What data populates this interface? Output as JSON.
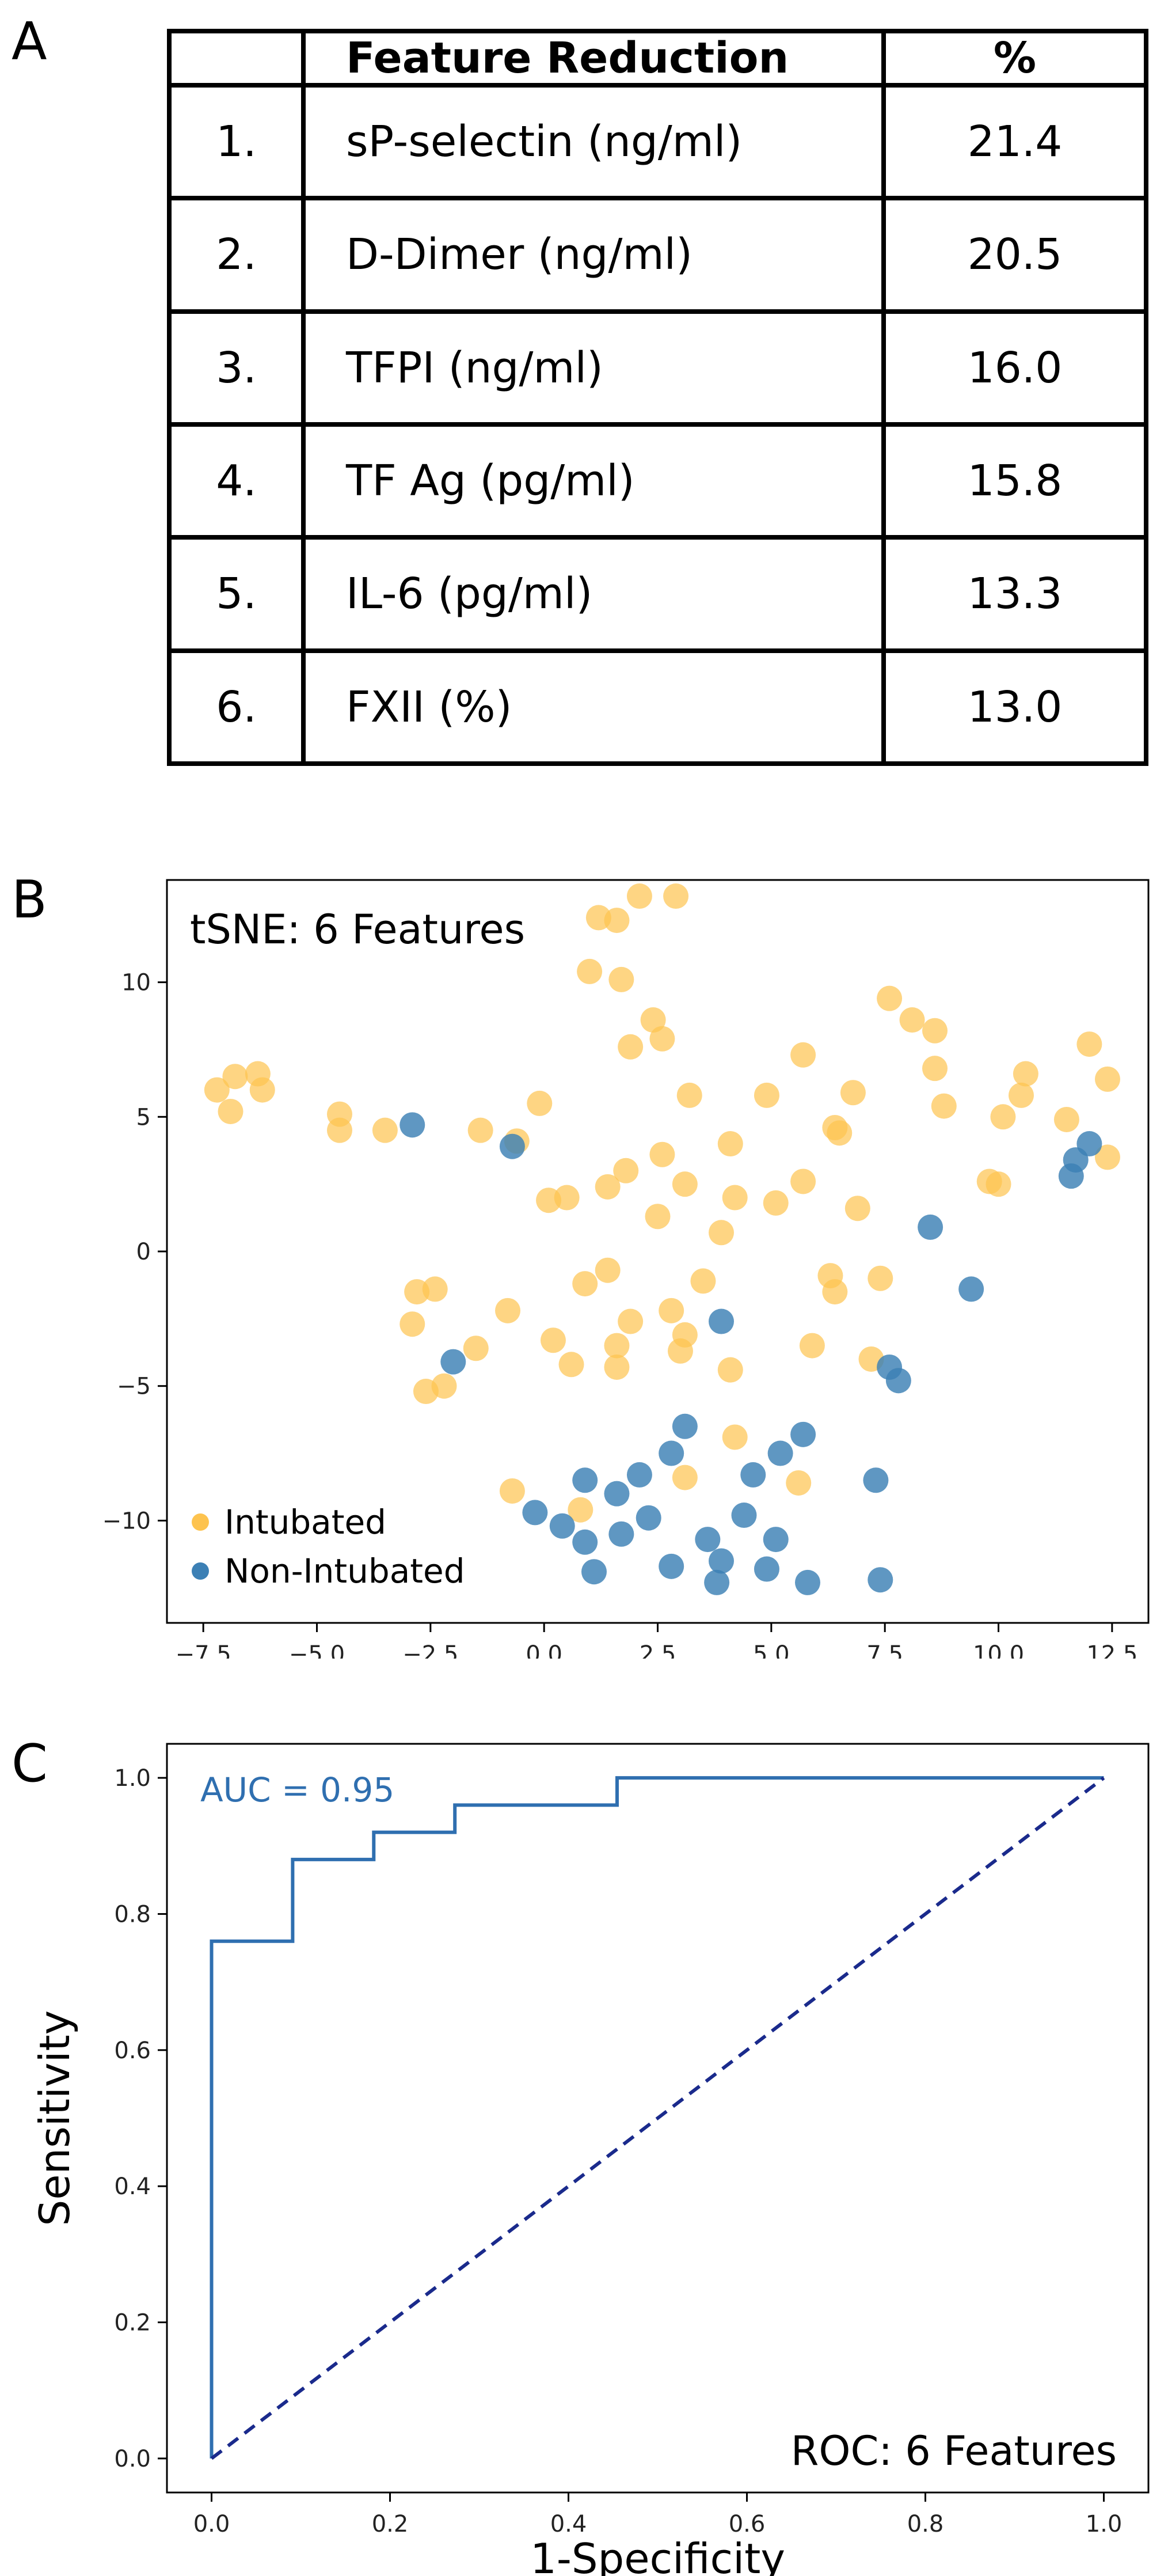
{
  "panels": {
    "a": "A",
    "b": "B",
    "c": "C"
  },
  "table": {
    "headers": [
      "",
      "Feature Reduction",
      "%"
    ],
    "rows": [
      {
        "rank": "1.",
        "feature": "sP-selectin (ng/ml)",
        "pct": "21.4"
      },
      {
        "rank": "2.",
        "feature": "D-Dimer (ng/ml)",
        "pct": "20.5"
      },
      {
        "rank": "3.",
        "feature": "TFPI (ng/ml)",
        "pct": "16.0"
      },
      {
        "rank": "4.",
        "feature": "TF Ag (pg/ml)",
        "pct": "15.8"
      },
      {
        "rank": "5.",
        "feature": "IL-6 (pg/ml)",
        "pct": "13.3"
      },
      {
        "rank": "6.",
        "feature": "FXII (%)",
        "pct": "13.0"
      }
    ]
  },
  "chart_data": [
    {
      "type": "scatter",
      "title": "tSNE: 6 Features",
      "xlabel": "",
      "ylabel": "",
      "xlim": [
        -8.3,
        13.3
      ],
      "ylim": [
        -13.8,
        13.8
      ],
      "xticks": [
        -7.5,
        -5.0,
        -2.5,
        0.0,
        2.5,
        5.0,
        7.5,
        10.0,
        12.5
      ],
      "xtick_labels": [
        "−7.5",
        "−5.0",
        "−2.5",
        "0.0",
        "2.5",
        "5.0",
        "7.5",
        "10.0",
        "12.5"
      ],
      "yticks": [
        -10,
        -5,
        0,
        5,
        10
      ],
      "ytick_labels": [
        "−10",
        "−5",
        "0",
        "5",
        "10"
      ],
      "grid": false,
      "legend": "bottom-left",
      "series": [
        {
          "name": "Intubated",
          "color": "#fdc34f",
          "points": [
            [
              -7.2,
              6.0
            ],
            [
              -6.8,
              6.5
            ],
            [
              -6.3,
              6.6
            ],
            [
              -6.9,
              5.2
            ],
            [
              -6.2,
              6.0
            ],
            [
              -4.5,
              5.1
            ],
            [
              -4.5,
              4.5
            ],
            [
              -3.5,
              4.5
            ],
            [
              -1.4,
              4.5
            ],
            [
              -0.6,
              4.1
            ],
            [
              -0.1,
              5.5
            ],
            [
              1.2,
              12.4
            ],
            [
              1.6,
              12.3
            ],
            [
              2.1,
              13.2
            ],
            [
              2.9,
              13.2
            ],
            [
              1.0,
              10.4
            ],
            [
              1.7,
              10.1
            ],
            [
              2.4,
              8.6
            ],
            [
              2.6,
              7.9
            ],
            [
              1.9,
              7.6
            ],
            [
              3.2,
              5.8
            ],
            [
              4.9,
              5.8
            ],
            [
              5.7,
              7.3
            ],
            [
              7.6,
              9.4
            ],
            [
              8.1,
              8.6
            ],
            [
              8.6,
              8.2
            ],
            [
              8.6,
              6.8
            ],
            [
              8.8,
              5.4
            ],
            [
              6.8,
              5.9
            ],
            [
              6.4,
              4.6
            ],
            [
              6.5,
              4.4
            ],
            [
              10.6,
              6.6
            ],
            [
              10.5,
              5.8
            ],
            [
              10.1,
              5.0
            ],
            [
              11.5,
              4.9
            ],
            [
              12.0,
              7.7
            ],
            [
              12.4,
              6.4
            ],
            [
              12.4,
              3.5
            ],
            [
              9.8,
              2.6
            ],
            [
              10.0,
              2.5
            ],
            [
              0.1,
              1.9
            ],
            [
              0.5,
              2.0
            ],
            [
              1.4,
              2.4
            ],
            [
              1.8,
              3.0
            ],
            [
              2.5,
              1.3
            ],
            [
              2.6,
              3.6
            ],
            [
              3.1,
              2.5
            ],
            [
              3.9,
              0.7
            ],
            [
              4.1,
              4.0
            ],
            [
              4.2,
              2.0
            ],
            [
              5.1,
              1.8
            ],
            [
              5.7,
              2.6
            ],
            [
              6.9,
              1.6
            ],
            [
              0.9,
              -1.2
            ],
            [
              1.4,
              -0.7
            ],
            [
              1.9,
              -2.6
            ],
            [
              2.8,
              -2.2
            ],
            [
              3.5,
              -1.1
            ],
            [
              6.3,
              -0.9
            ],
            [
              6.4,
              -1.5
            ],
            [
              7.4,
              -1.0
            ],
            [
              -2.8,
              -1.5
            ],
            [
              -2.4,
              -1.4
            ],
            [
              -2.9,
              -2.7
            ],
            [
              -1.5,
              -3.6
            ],
            [
              -0.8,
              -2.2
            ],
            [
              0.2,
              -3.3
            ],
            [
              0.6,
              -4.2
            ],
            [
              1.6,
              -3.5
            ],
            [
              1.6,
              -4.3
            ],
            [
              3.0,
              -3.7
            ],
            [
              3.1,
              -3.1
            ],
            [
              4.1,
              -4.4
            ],
            [
              5.9,
              -3.5
            ],
            [
              7.2,
              -4.0
            ],
            [
              -2.6,
              -5.2
            ],
            [
              -2.2,
              -5.0
            ],
            [
              4.2,
              -6.9
            ],
            [
              3.1,
              -8.4
            ],
            [
              5.6,
              -8.6
            ],
            [
              -0.7,
              -8.9
            ],
            [
              0.8,
              -9.6
            ]
          ]
        },
        {
          "name": "Non-Intubated",
          "color": "#3c80b5",
          "points": [
            [
              -2.9,
              4.7
            ],
            [
              -0.7,
              3.9
            ],
            [
              12.0,
              4.0
            ],
            [
              11.7,
              3.4
            ],
            [
              11.6,
              2.8
            ],
            [
              8.5,
              0.9
            ],
            [
              9.4,
              -1.4
            ],
            [
              3.9,
              -2.6
            ],
            [
              7.6,
              -4.3
            ],
            [
              7.8,
              -4.8
            ],
            [
              -2.0,
              -4.1
            ],
            [
              3.1,
              -6.5
            ],
            [
              5.7,
              -6.8
            ],
            [
              2.8,
              -7.5
            ],
            [
              5.2,
              -7.5
            ],
            [
              0.9,
              -8.5
            ],
            [
              2.1,
              -8.3
            ],
            [
              4.6,
              -8.3
            ],
            [
              7.3,
              -8.5
            ],
            [
              1.6,
              -9.0
            ],
            [
              -0.2,
              -9.7
            ],
            [
              0.4,
              -10.2
            ],
            [
              2.3,
              -9.9
            ],
            [
              4.4,
              -9.8
            ],
            [
              0.9,
              -10.8
            ],
            [
              1.7,
              -10.5
            ],
            [
              3.6,
              -10.7
            ],
            [
              5.1,
              -10.7
            ],
            [
              1.1,
              -11.9
            ],
            [
              2.8,
              -11.7
            ],
            [
              3.9,
              -11.5
            ],
            [
              4.9,
              -11.8
            ],
            [
              3.8,
              -12.3
            ],
            [
              5.8,
              -12.3
            ],
            [
              7.4,
              -12.2
            ]
          ]
        }
      ]
    },
    {
      "type": "line",
      "title": "ROC: 6 Features",
      "annotation": "AUC = 0.95",
      "xlabel": "1-Specificity",
      "ylabel": "Sensitivity",
      "xlim": [
        -0.05,
        1.05
      ],
      "ylim": [
        -0.05,
        1.05
      ],
      "xticks": [
        0.0,
        0.2,
        0.4,
        0.6,
        0.8,
        1.0
      ],
      "xtick_labels": [
        "0.0",
        "0.2",
        "0.4",
        "0.6",
        "0.8",
        "1.0"
      ],
      "yticks": [
        0.0,
        0.2,
        0.4,
        0.6,
        0.8,
        1.0
      ],
      "ytick_labels": [
        "0.0",
        "0.2",
        "0.4",
        "0.6",
        "0.8",
        "1.0"
      ],
      "grid": false,
      "series": [
        {
          "name": "ROC",
          "color": "#2f6fb0",
          "style": "solid",
          "x": [
            0.0,
            0.0,
            0.0909,
            0.0909,
            0.1818,
            0.1818,
            0.2727,
            0.2727,
            0.4545,
            0.4545,
            1.0
          ],
          "y": [
            0.0,
            0.76,
            0.76,
            0.88,
            0.88,
            0.92,
            0.92,
            0.96,
            0.96,
            1.0,
            1.0
          ]
        },
        {
          "name": "Chance",
          "color": "#1a2a8c",
          "style": "dashed",
          "x": [
            0.0,
            1.0
          ],
          "y": [
            0.0,
            1.0
          ]
        }
      ]
    }
  ]
}
